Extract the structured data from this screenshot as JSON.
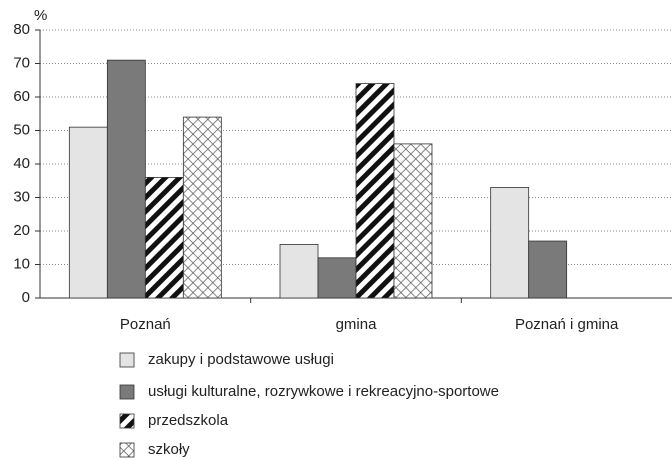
{
  "chart_data": {
    "type": "bar",
    "ylabel": "%",
    "categories": [
      "Poznań",
      "gmina",
      "Poznań i gmina"
    ],
    "series": [
      {
        "name": "zakupy i podstawowe usługi",
        "color": "#e4e4e4",
        "pattern": "solid",
        "values": [
          51,
          16,
          33
        ]
      },
      {
        "name": "usługi kulturalne, rozrywkowe i rekreacyjno-sportowe",
        "color": "#7a7a7a",
        "pattern": "solid",
        "values": [
          71,
          12,
          17
        ]
      },
      {
        "name": "przedszkola",
        "color": "#111111",
        "pattern": "hatch",
        "values": [
          36,
          64,
          null
        ]
      },
      {
        "name": "szkoły",
        "color": "#555555",
        "pattern": "crosshatch",
        "values": [
          54,
          46,
          null
        ]
      }
    ],
    "ylim": [
      0,
      80
    ],
    "yticks": [
      0,
      10,
      20,
      30,
      40,
      50,
      60,
      70,
      80
    ],
    "grid": true
  }
}
